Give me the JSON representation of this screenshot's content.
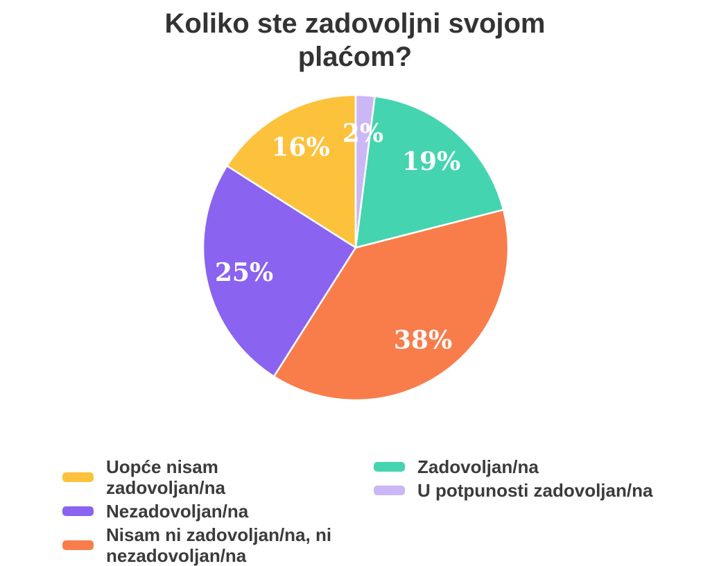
{
  "title": "Koliko ste zadovoljni svojom plaćom?",
  "chart_data": {
    "type": "pie",
    "title": "Koliko ste zadovoljni svojom plaćom?",
    "categories": [
      "Uopće nisam zadovoljan/na",
      "Nezadovoljan/na",
      "Nisam ni zadovoljan/na, ni nezadovoljan/na",
      "Zadovoljan/na",
      "U potpunosti zadovoljan/na"
    ],
    "values": [
      16,
      25,
      38,
      19,
      2
    ],
    "unit": "percent",
    "value_labels": [
      "16%",
      "25%",
      "38%",
      "19%",
      "2%"
    ],
    "colors": [
      "#FCC23C",
      "#8A63F0",
      "#F87D4B",
      "#45D4B0",
      "#CBB7F5"
    ],
    "start_angle_deg": 90,
    "counterclockwise": true,
    "label_distance": 0.75,
    "label_color": "#FFFFFF",
    "slice_border_color": "#FFFFFF",
    "legend_position": "bottom",
    "legend_columns": [
      [
        0,
        1,
        2
      ],
      [
        3,
        4
      ]
    ]
  }
}
